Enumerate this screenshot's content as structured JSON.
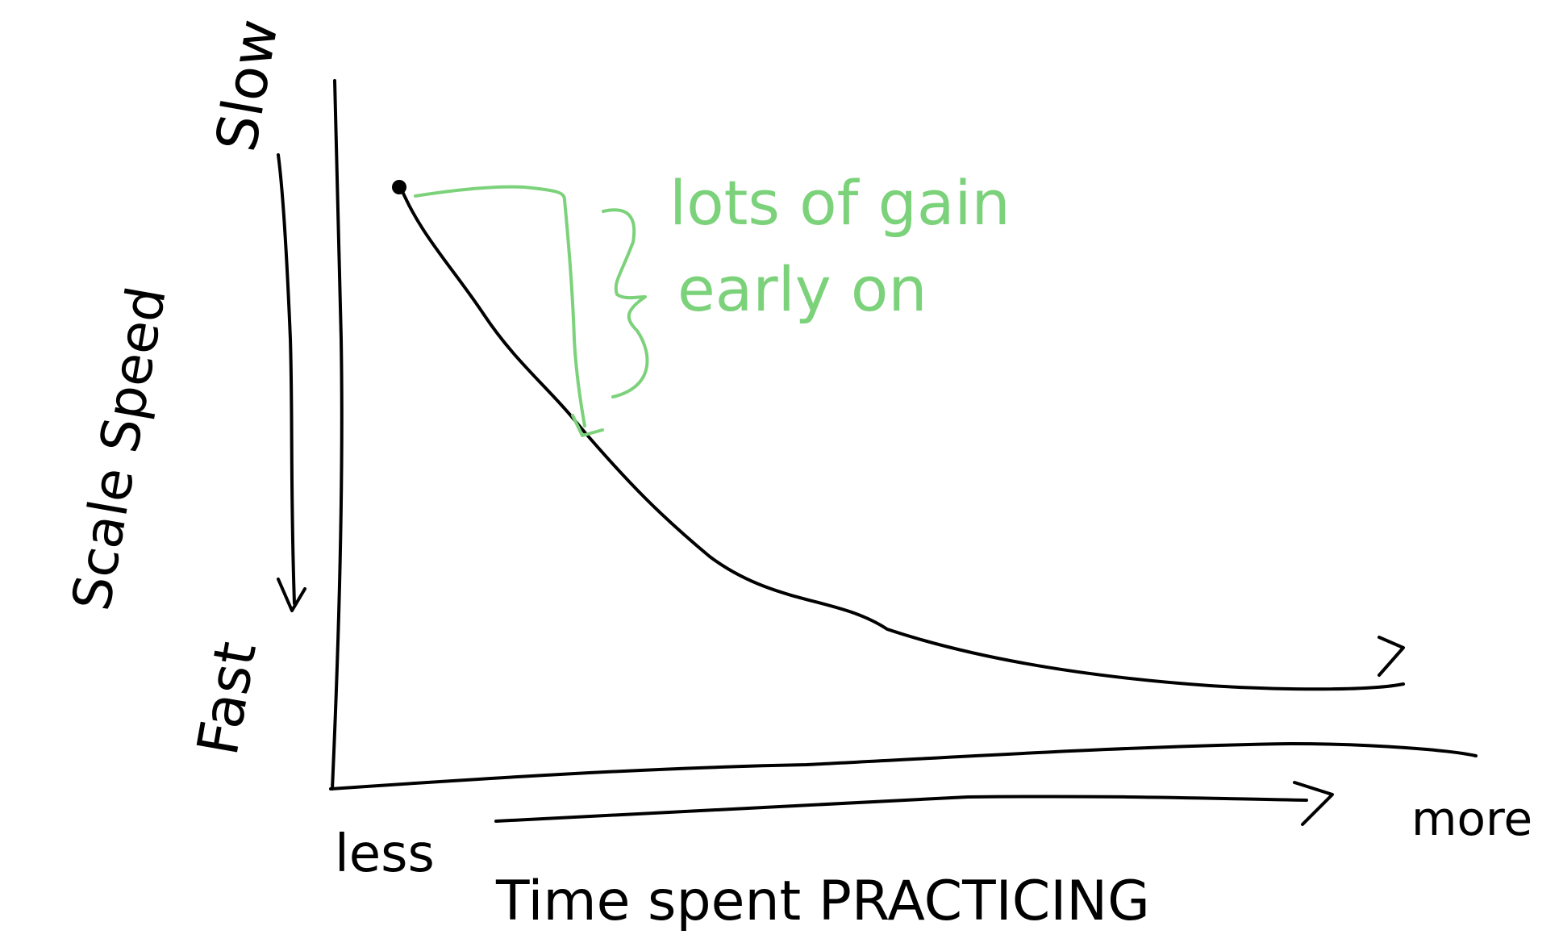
{
  "labels": {
    "y_axis": "Scale Speed",
    "y_top": "Slow",
    "y_bottom": "Fast",
    "x_axis": "Time spent PRACTICING",
    "x_left": "less",
    "x_right": "more",
    "annotation_line1": "lots of gain",
    "annotation_line2": "early on"
  },
  "colors": {
    "ink": "#000000",
    "annotation": "#7cd27a",
    "background": "#ffffff"
  }
}
